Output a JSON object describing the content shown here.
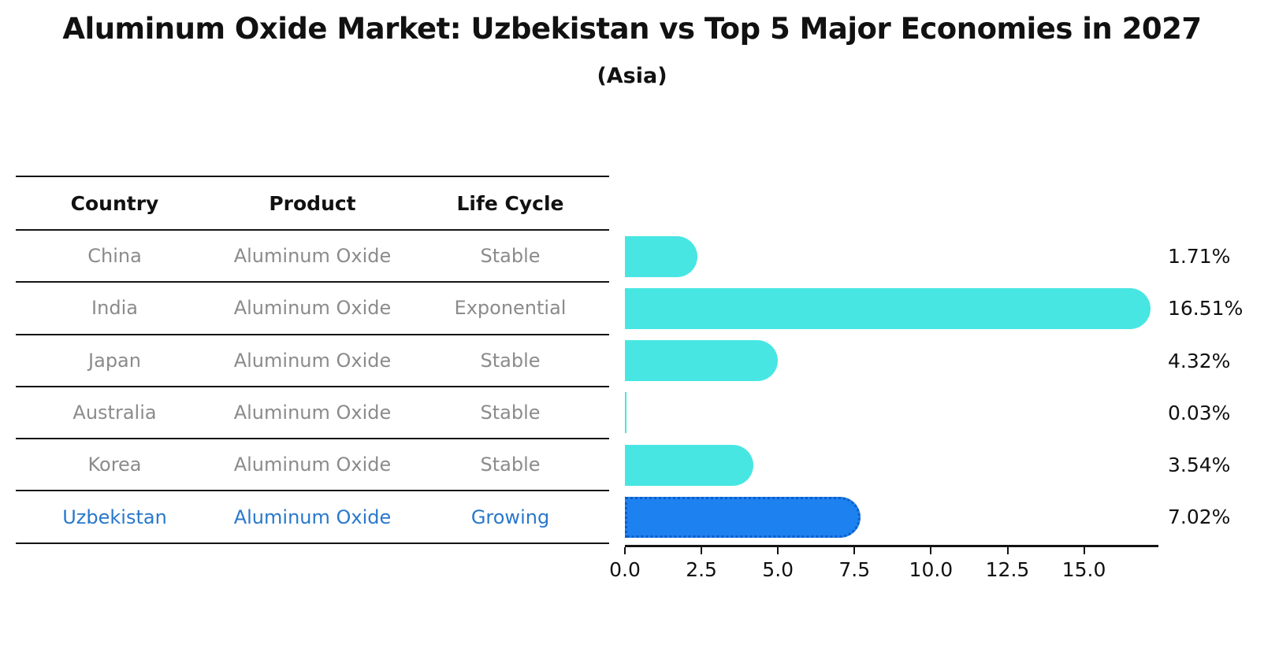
{
  "title": "Aluminum Oxide Market: Uzbekistan vs Top 5 Major Economies in 2027",
  "subtitle": "(Asia)",
  "table": {
    "headers": [
      "Country",
      "Product",
      "Life Cycle"
    ],
    "rows": [
      {
        "country": "China",
        "product": "Aluminum Oxide",
        "life_cycle": "Stable"
      },
      {
        "country": "India",
        "product": "Aluminum Oxide",
        "life_cycle": "Exponential"
      },
      {
        "country": "Japan",
        "product": "Aluminum Oxide",
        "life_cycle": "Stable"
      },
      {
        "country": "Australia",
        "product": "Aluminum Oxide",
        "life_cycle": "Stable"
      },
      {
        "country": "Korea",
        "product": "Aluminum Oxide",
        "life_cycle": "Stable"
      },
      {
        "country": "Uzbekistan",
        "product": "Aluminum Oxide",
        "life_cycle": "Growing"
      }
    ]
  },
  "chart_data": {
    "type": "bar",
    "orientation": "horizontal",
    "title": "Aluminum Oxide Market: Uzbekistan vs Top 5 Major Economies in 2027",
    "subtitle": "(Asia)",
    "categories": [
      "China",
      "India",
      "Japan",
      "Australia",
      "Korea",
      "Uzbekistan"
    ],
    "values": [
      1.71,
      16.51,
      4.32,
      0.03,
      3.54,
      7.02
    ],
    "value_labels": [
      "1.71%",
      "16.51%",
      "4.32%",
      "0.03%",
      "3.54%",
      "7.02%"
    ],
    "x_ticks": [
      "0.0",
      "2.5",
      "5.0",
      "7.5",
      "10.0",
      "12.5",
      "15.0"
    ],
    "xlim": [
      0,
      17.4
    ],
    "grid": false,
    "legend": false,
    "highlight_index": 5,
    "colors": {
      "default_bar": "#47e6e3",
      "highlight_bar": "#1e81f0",
      "highlight_border": "#0d5dc8",
      "highlight_text": "#2878cb",
      "body_text": "#8b8b8b",
      "axis_text": "#111111"
    }
  }
}
